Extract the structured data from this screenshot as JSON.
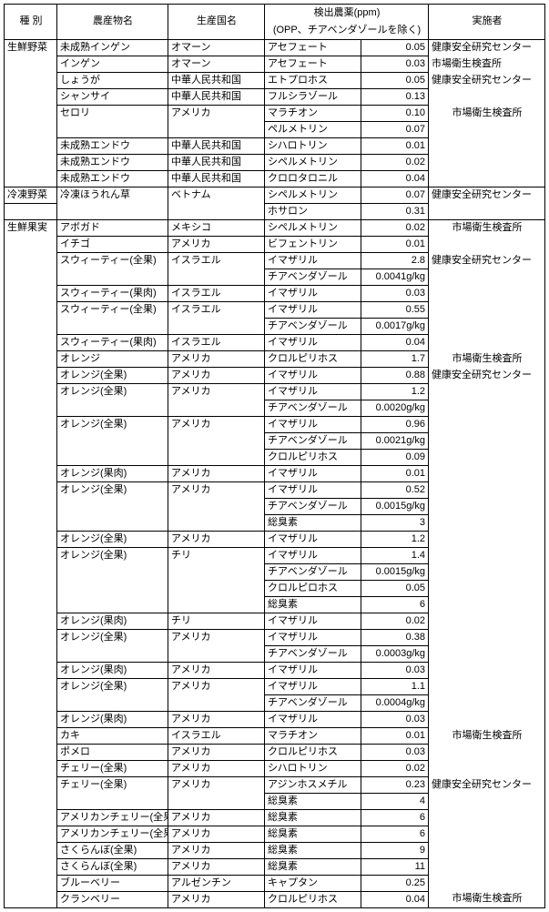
{
  "headers": {
    "c1": "種 別",
    "c2": "農産物名",
    "c3": "生産国名",
    "c4_top": "検出農薬(ppm)",
    "c4_sub": "(OPP、チアベンダゾールを除く)",
    "c6": "実施者"
  },
  "rows": [
    {
      "c1": "生鮮野菜",
      "c2": "未成熟インゲン",
      "c3": "オマーン",
      "c4": "アセフェート",
      "c5": "0.05",
      "c6": "健康安全研究センター",
      "c12b": "nb-b",
      "c13b": "",
      "c14b": "",
      "c16b": "nb-b"
    },
    {
      "c1": "",
      "c2": "インゲン",
      "c3": "オマーン",
      "c4": "アセフェート",
      "c5": "0.03",
      "c6": "市場衛生検査所",
      "c12b": "nb-t nb-b",
      "c13b": "",
      "c14b": "",
      "c16b": "nb-t nb-b"
    },
    {
      "c1": "",
      "c2": "しょうが",
      "c3": "中華人民共和国",
      "c4": "エトプロホス",
      "c5": "0.05",
      "c6": "健康安全研究センター",
      "c12b": "nb-t nb-b",
      "c13b": "",
      "c14b": "",
      "c16b": "nb-t nb-b"
    },
    {
      "c1": "",
      "c2": "シャンサイ",
      "c3": "中華人民共和国",
      "c4": "フルシラゾール",
      "c5": "0.13",
      "c6": "",
      "c12b": "nb-t nb-b",
      "c13b": "",
      "c14b": "",
      "c16b": "nb-t nb-b"
    },
    {
      "c1": "",
      "c2": "セロリ",
      "c3": "アメリカ",
      "c4": "マラチオン",
      "c5": "0.10",
      "c6": "市場衛生検査所",
      "c12b": "nb-t nb-b",
      "c13b": "nb-b",
      "c14b": "nb-b",
      "c16b": "nb-t nb-b",
      "c6cls": "ctr"
    },
    {
      "c1": "",
      "c2": "",
      "c3": "",
      "c4": "ペルメトリン",
      "c5": "0.07",
      "c6": "",
      "c12b": "nb-t nb-b",
      "c13b": "nb-t",
      "c14b": "nb-t",
      "c16b": "nb-t nb-b"
    },
    {
      "c1": "",
      "c2": "未成熟エンドウ",
      "c3": "中華人民共和国",
      "c4": "シハロトリン",
      "c5": "0.01",
      "c6": "",
      "c12b": "nb-t nb-b",
      "c13b": "",
      "c14b": "",
      "c16b": "nb-t nb-b"
    },
    {
      "c1": "",
      "c2": "未成熟エンドウ",
      "c3": "中華人民共和国",
      "c4": "シペルメトリン",
      "c5": "0.02",
      "c6": "",
      "c12b": "nb-t nb-b",
      "c13b": "",
      "c14b": "",
      "c16b": "nb-t nb-b"
    },
    {
      "c1": "",
      "c2": "未成熟エンドウ",
      "c3": "中華人民共和国",
      "c4": "クロロタロニル",
      "c5": "0.04",
      "c6": "",
      "c12b": "nb-t",
      "c13b": "",
      "c14b": "",
      "c16b": "nb-t"
    },
    {
      "c1": "冷凍野菜",
      "c2": "冷凍ほうれん草",
      "c3": "ベトナム",
      "c4": "シペルメトリン",
      "c5": "0.07",
      "c6": "健康安全研究センター",
      "c12b": "",
      "c13b": "nb-b",
      "c14b": "nb-b",
      "c16b": "nb-b"
    },
    {
      "c1": "",
      "c2": "",
      "c3": "",
      "c4": "ホサロン",
      "c5": "0.31",
      "c6": "",
      "c12b": "",
      "c13b": "nb-t",
      "c14b": "nb-t",
      "c16b": "nb-t"
    },
    {
      "c1": "生鮮果実",
      "c2": "アボガド",
      "c3": "メキシコ",
      "c4": "シペルメトリン",
      "c5": "0.02",
      "c6": "市場衛生検査所",
      "c12b": "nb-b",
      "c13b": "",
      "c14b": "",
      "c16b": "nb-b",
      "c6cls": "ctr"
    },
    {
      "c1": "",
      "c2": "イチゴ",
      "c3": "アメリカ",
      "c4": "ビフェントリン",
      "c5": "0.01",
      "c6": "",
      "c12b": "nb-t nb-b",
      "c13b": "",
      "c14b": "",
      "c16b": "nb-t nb-b"
    },
    {
      "c1": "",
      "c2": "スウィーティー(全果)",
      "c3": "イスラエル",
      "c4": "イマザリル",
      "c5": "2.8",
      "c6": "健康安全研究センター",
      "c12b": "nb-t nb-b",
      "c13b": "nb-b",
      "c14b": "nb-b",
      "c16b": "nb-t nb-b"
    },
    {
      "c1": "",
      "c2": "",
      "c3": "",
      "c4": "チアベンダゾール",
      "c5": "0.0041g/kg",
      "c6": "",
      "c12b": "nb-t nb-b",
      "c13b": "nb-t",
      "c14b": "nb-t",
      "c16b": "nb-t nb-b"
    },
    {
      "c1": "",
      "c2": "スウィーティー(果肉)",
      "c3": "イスラエル",
      "c4": "イマザリル",
      "c5": "0.03",
      "c6": "",
      "c12b": "nb-t nb-b",
      "c13b": "",
      "c14b": "",
      "c16b": "nb-t nb-b"
    },
    {
      "c1": "",
      "c2": "スウィーティー(全果)",
      "c3": "イスラエル",
      "c4": "イマザリル",
      "c5": "0.55",
      "c6": "",
      "c12b": "nb-t nb-b",
      "c13b": "nb-b",
      "c14b": "nb-b",
      "c16b": "nb-t nb-b"
    },
    {
      "c1": "",
      "c2": "",
      "c3": "",
      "c4": "チアベンダゾール",
      "c5": "0.0017g/kg",
      "c6": "",
      "c12b": "nb-t nb-b",
      "c13b": "nb-t",
      "c14b": "nb-t",
      "c16b": "nb-t nb-b"
    },
    {
      "c1": "",
      "c2": "スウィーティー(果肉)",
      "c3": "イスラエル",
      "c4": "イマザリル",
      "c5": "0.04",
      "c6": "",
      "c12b": "nb-t nb-b",
      "c13b": "",
      "c14b": "",
      "c16b": "nb-t nb-b"
    },
    {
      "c1": "",
      "c2": "オレンジ",
      "c3": "アメリカ",
      "c4": "クロルピリホス",
      "c5": "1.7",
      "c6": "市場衛生検査所",
      "c12b": "nb-t nb-b",
      "c13b": "",
      "c14b": "",
      "c16b": "nb-t nb-b",
      "c6cls": "ctr"
    },
    {
      "c1": "",
      "c2": "オレンジ(全果)",
      "c3": "アメリカ",
      "c4": "イマザリル",
      "c5": "0.88",
      "c6": "健康安全研究センター",
      "c12b": "nb-t nb-b",
      "c13b": "",
      "c14b": "",
      "c16b": "nb-t nb-b"
    },
    {
      "c1": "",
      "c2": "オレンジ(全果)",
      "c3": "アメリカ",
      "c4": "イマザリル",
      "c5": "1.2",
      "c6": "",
      "c12b": "nb-t nb-b",
      "c13b": "nb-b",
      "c14b": "nb-b",
      "c16b": "nb-t nb-b"
    },
    {
      "c1": "",
      "c2": "",
      "c3": "",
      "c4": "チアベンダゾール",
      "c5": "0.0020g/kg",
      "c6": "",
      "c12b": "nb-t nb-b",
      "c13b": "nb-t",
      "c14b": "nb-t",
      "c16b": "nb-t nb-b"
    },
    {
      "c1": "",
      "c2": "オレンジ(全果)",
      "c3": "アメリカ",
      "c4": "イマザリル",
      "c5": "0.96",
      "c6": "",
      "c12b": "nb-t nb-b",
      "c13b": "nb-b",
      "c14b": "nb-b",
      "c16b": "nb-t nb-b"
    },
    {
      "c1": "",
      "c2": "",
      "c3": "",
      "c4": "チアベンダゾール",
      "c5": "0.0021g/kg",
      "c6": "",
      "c12b": "nb-t nb-b",
      "c13b": "nb-t nb-b",
      "c14b": "nb-t nb-b",
      "c16b": "nb-t nb-b"
    },
    {
      "c1": "",
      "c2": "",
      "c3": "",
      "c4": "クロルピリホス",
      "c5": "0.09",
      "c6": "",
      "c12b": "nb-t nb-b",
      "c13b": "nb-t",
      "c14b": "nb-t",
      "c16b": "nb-t nb-b"
    },
    {
      "c1": "",
      "c2": "オレンジ(果肉)",
      "c3": "アメリカ",
      "c4": "イマザリル",
      "c5": "0.01",
      "c6": "",
      "c12b": "nb-t nb-b",
      "c13b": "",
      "c14b": "",
      "c16b": "nb-t nb-b"
    },
    {
      "c1": "",
      "c2": "オレンジ(全果)",
      "c3": "アメリカ",
      "c4": "イマザリル",
      "c5": "0.52",
      "c6": "",
      "c12b": "nb-t nb-b",
      "c13b": "nb-b",
      "c14b": "nb-b",
      "c16b": "nb-t nb-b"
    },
    {
      "c1": "",
      "c2": "",
      "c3": "",
      "c4": "チアベンダゾール",
      "c5": "0.0015g/kg",
      "c6": "",
      "c12b": "nb-t nb-b",
      "c13b": "nb-t nb-b",
      "c14b": "nb-t nb-b",
      "c16b": "nb-t nb-b"
    },
    {
      "c1": "",
      "c2": "",
      "c3": "",
      "c4": "総臭素",
      "c5": "3",
      "c6": "",
      "c12b": "nb-t nb-b",
      "c13b": "nb-t",
      "c14b": "nb-t",
      "c16b": "nb-t nb-b"
    },
    {
      "c1": "",
      "c2": "オレンジ(全果)",
      "c3": "アメリカ",
      "c4": "イマザリル",
      "c5": "1.2",
      "c6": "",
      "c12b": "nb-t nb-b",
      "c13b": "",
      "c14b": "",
      "c16b": "nb-t nb-b"
    },
    {
      "c1": "",
      "c2": "オレンジ(全果)",
      "c3": "チリ",
      "c4": "イマザリル",
      "c5": "1.4",
      "c6": "",
      "c12b": "nb-t nb-b",
      "c13b": "nb-b",
      "c14b": "nb-b",
      "c16b": "nb-t nb-b"
    },
    {
      "c1": "",
      "c2": "",
      "c3": "",
      "c4": "チアベンダゾール",
      "c5": "0.0015g/kg",
      "c6": "",
      "c12b": "nb-t nb-b",
      "c13b": "nb-t nb-b",
      "c14b": "nb-t nb-b",
      "c16b": "nb-t nb-b"
    },
    {
      "c1": "",
      "c2": "",
      "c3": "",
      "c4": "クロルピロホス",
      "c5": "0.05",
      "c6": "",
      "c12b": "nb-t nb-b",
      "c13b": "nb-t nb-b",
      "c14b": "nb-t nb-b",
      "c16b": "nb-t nb-b"
    },
    {
      "c1": "",
      "c2": "",
      "c3": "",
      "c4": "総臭素",
      "c5": "6",
      "c6": "",
      "c12b": "nb-t nb-b",
      "c13b": "nb-t",
      "c14b": "nb-t",
      "c16b": "nb-t nb-b"
    },
    {
      "c1": "",
      "c2": "オレンジ(果肉)",
      "c3": "チリ",
      "c4": "イマザリル",
      "c5": "0.02",
      "c6": "",
      "c12b": "nb-t nb-b",
      "c13b": "",
      "c14b": "",
      "c16b": "nb-t nb-b"
    },
    {
      "c1": "",
      "c2": "オレンジ(全果)",
      "c3": "アメリカ",
      "c4": "イマザリル",
      "c5": "0.38",
      "c6": "",
      "c12b": "nb-t nb-b",
      "c13b": "nb-b",
      "c14b": "nb-b",
      "c16b": "nb-t nb-b"
    },
    {
      "c1": "",
      "c2": "",
      "c3": "",
      "c4": "チアベンダゾール",
      "c5": "0.0003g/kg",
      "c6": "",
      "c12b": "nb-t nb-b",
      "c13b": "nb-t",
      "c14b": "nb-t",
      "c16b": "nb-t nb-b"
    },
    {
      "c1": "",
      "c2": "オレンジ(果肉)",
      "c3": "アメリカ",
      "c4": "イマザリル",
      "c5": "0.03",
      "c6": "",
      "c12b": "nb-t nb-b",
      "c13b": "",
      "c14b": "",
      "c16b": "nb-t nb-b"
    },
    {
      "c1": "",
      "c2": "オレンジ(全果)",
      "c3": "アメリカ",
      "c4": "イマザリル",
      "c5": "1.1",
      "c6": "",
      "c12b": "nb-t nb-b",
      "c13b": "nb-b",
      "c14b": "nb-b",
      "c16b": "nb-t nb-b"
    },
    {
      "c1": "",
      "c2": "",
      "c3": "",
      "c4": "チアベンダゾール",
      "c5": "0.0004g/kg",
      "c6": "",
      "c12b": "nb-t nb-b",
      "c13b": "nb-t",
      "c14b": "nb-t",
      "c16b": "nb-t nb-b"
    },
    {
      "c1": "",
      "c2": "オレンジ(果肉)",
      "c3": "アメリカ",
      "c4": "イマザリル",
      "c5": "0.03",
      "c6": "",
      "c12b": "nb-t nb-b",
      "c13b": "",
      "c14b": "",
      "c16b": "nb-t nb-b"
    },
    {
      "c1": "",
      "c2": "カキ",
      "c3": "イスラエル",
      "c4": "マラチオン",
      "c5": "0.01",
      "c6": "市場衛生検査所",
      "c12b": "nb-t nb-b",
      "c13b": "",
      "c14b": "",
      "c16b": "nb-t nb-b",
      "c6cls": "ctr"
    },
    {
      "c1": "",
      "c2": "ポメロ",
      "c3": "アメリカ",
      "c4": "クロルピリホス",
      "c5": "0.03",
      "c6": "",
      "c12b": "nb-t nb-b",
      "c13b": "",
      "c14b": "",
      "c16b": "nb-t nb-b"
    },
    {
      "c1": "",
      "c2": "チェリー(全果)",
      "c3": "アメリカ",
      "c4": "シハロトリン",
      "c5": "0.02",
      "c6": "",
      "c12b": "nb-t nb-b",
      "c13b": "",
      "c14b": "",
      "c16b": "nb-t nb-b"
    },
    {
      "c1": "",
      "c2": "チェリー(全果)",
      "c3": "アメリカ",
      "c4": "アジンホスメチル",
      "c5": "0.23",
      "c6": "健康安全研究センター",
      "c12b": "nb-t nb-b",
      "c13b": "nb-b",
      "c14b": "nb-b",
      "c16b": "nb-t nb-b"
    },
    {
      "c1": "",
      "c2": "",
      "c3": "",
      "c4": "総臭素",
      "c5": "4",
      "c6": "",
      "c12b": "nb-t nb-b",
      "c13b": "nb-t",
      "c14b": "nb-t",
      "c16b": "nb-t nb-b"
    },
    {
      "c1": "",
      "c2": "アメリカンチェリー(全果)",
      "c3": "アメリカ",
      "c4": "総臭素",
      "c5": "6",
      "c6": "",
      "c12b": "nb-t nb-b",
      "c13b": "",
      "c14b": "",
      "c16b": "nb-t nb-b"
    },
    {
      "c1": "",
      "c2": "アメリカンチェリー(全果)",
      "c3": "アメリカ",
      "c4": "総臭素",
      "c5": "6",
      "c6": "",
      "c12b": "nb-t nb-b",
      "c13b": "",
      "c14b": "",
      "c16b": "nb-t nb-b"
    },
    {
      "c1": "",
      "c2": "さくらんぼ(全果)",
      "c3": "アメリカ",
      "c4": "総臭素",
      "c5": "9",
      "c6": "",
      "c12b": "nb-t nb-b",
      "c13b": "",
      "c14b": "",
      "c16b": "nb-t nb-b"
    },
    {
      "c1": "",
      "c2": "さくらんぼ(全果)",
      "c3": "アメリカ",
      "c4": "総臭素",
      "c5": "11",
      "c6": "",
      "c12b": "nb-t nb-b",
      "c13b": "",
      "c14b": "",
      "c16b": "nb-t nb-b"
    },
    {
      "c1": "",
      "c2": "ブルーベリー",
      "c3": "アルゼンチン",
      "c4": "キャプタン",
      "c5": "0.25",
      "c6": "",
      "c12b": "nb-t nb-b",
      "c13b": "",
      "c14b": "",
      "c16b": "nb-t nb-b"
    },
    {
      "c1": "",
      "c2": "クランベリー",
      "c3": "アメリカ",
      "c4": "クロルピリホス",
      "c5": "0.04",
      "c6": "市場衛生検査所",
      "c12b": "nb-t",
      "c13b": "",
      "c14b": "",
      "c16b": "nb-t",
      "c6cls": "ctr"
    }
  ]
}
